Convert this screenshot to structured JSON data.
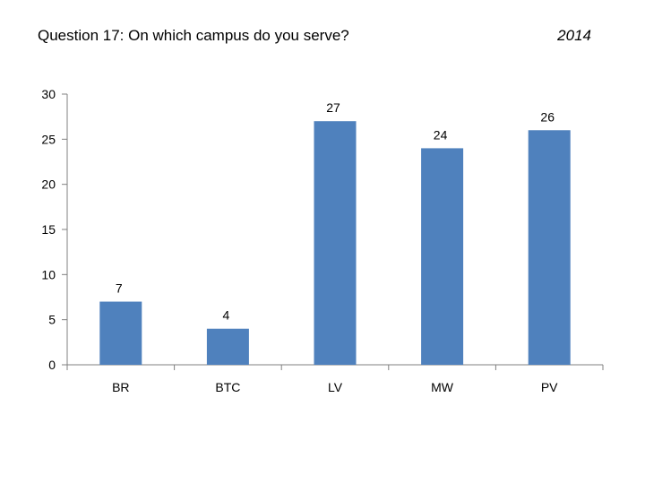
{
  "header": {
    "title": "Question 17: On which campus do you serve?",
    "year": "2014"
  },
  "chart_data": {
    "type": "bar",
    "categories": [
      "BR",
      "BTC",
      "LV",
      "MW",
      "PV"
    ],
    "values": [
      7,
      4,
      27,
      24,
      26
    ],
    "data_labels": [
      "7",
      "4",
      "27",
      "24",
      "26"
    ],
    "ylim": [
      0,
      30
    ],
    "yticks": [
      0,
      5,
      10,
      15,
      20,
      25,
      30
    ],
    "xlabel": "",
    "ylabel": "",
    "grid": false,
    "legend": "none",
    "bar_color": "#4f81bd",
    "axis_color": "#808080"
  }
}
